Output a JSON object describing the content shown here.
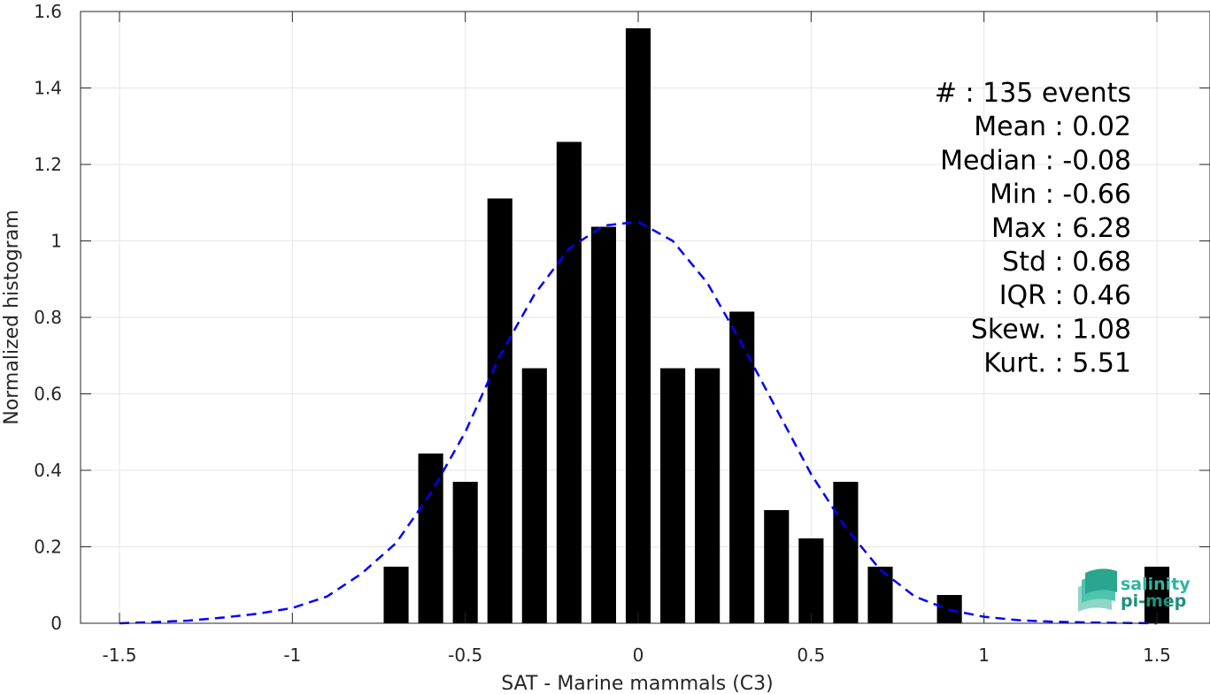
{
  "chart_data": {
    "type": "bar",
    "xlabel": "SAT - Marine mammals (C3)",
    "ylabel": "Normalized histogram",
    "xlim": [
      -1.5,
      1.5
    ],
    "ylim": [
      0,
      1.6
    ],
    "x_ticks": [
      "-1.5",
      "-1",
      "-0.5",
      "0",
      "0.5",
      "1",
      "1.5"
    ],
    "y_ticks": [
      "0",
      "0.2",
      "0.4",
      "0.6",
      "0.8",
      "1",
      "1.2",
      "1.4",
      "1.6"
    ],
    "grid": true,
    "bar_color": "#000000",
    "curve_color": "#0000ff",
    "bars": {
      "x": [
        -0.7,
        -0.6,
        -0.5,
        -0.4,
        -0.3,
        -0.2,
        -0.1,
        0.0,
        0.1,
        0.2,
        0.3,
        0.4,
        0.5,
        0.6,
        0.7,
        0.9,
        1.5
      ],
      "values": [
        0.148,
        0.444,
        0.37,
        1.111,
        0.667,
        1.259,
        1.037,
        1.556,
        0.667,
        0.667,
        0.815,
        0.296,
        0.222,
        0.37,
        0.148,
        0.074,
        0.148
      ]
    },
    "fit_curve": {
      "style": "dashed",
      "x": [
        -1.5,
        -1.4,
        -1.3,
        -1.2,
        -1.1,
        -1.0,
        -0.9,
        -0.8,
        -0.7,
        -0.6,
        -0.5,
        -0.4,
        -0.3,
        -0.2,
        -0.1,
        0.0,
        0.1,
        0.2,
        0.3,
        0.4,
        0.5,
        0.6,
        0.7,
        0.8,
        0.9,
        1.0,
        1.1,
        1.2,
        1.3,
        1.4,
        1.5
      ],
      "y": [
        0.0,
        0.003,
        0.007,
        0.015,
        0.025,
        0.04,
        0.07,
        0.13,
        0.21,
        0.34,
        0.5,
        0.7,
        0.86,
        0.98,
        1.04,
        1.05,
        1.0,
        0.89,
        0.73,
        0.56,
        0.39,
        0.25,
        0.14,
        0.07,
        0.035,
        0.017,
        0.008,
        0.004,
        0.002,
        0.001,
        0.0
      ]
    },
    "annotations": [
      "#  : 135 events",
      "Mean : 0.02",
      "Median : -0.08",
      "Min : -0.66",
      "Max : 6.28",
      "Std : 0.68",
      "IQR : 0.46",
      "Skew. : 1.08",
      "Kurt. : 5.51"
    ]
  },
  "logo": {
    "line1": "salinity",
    "line2": "pi-mep",
    "color": "#2bb5a0"
  }
}
